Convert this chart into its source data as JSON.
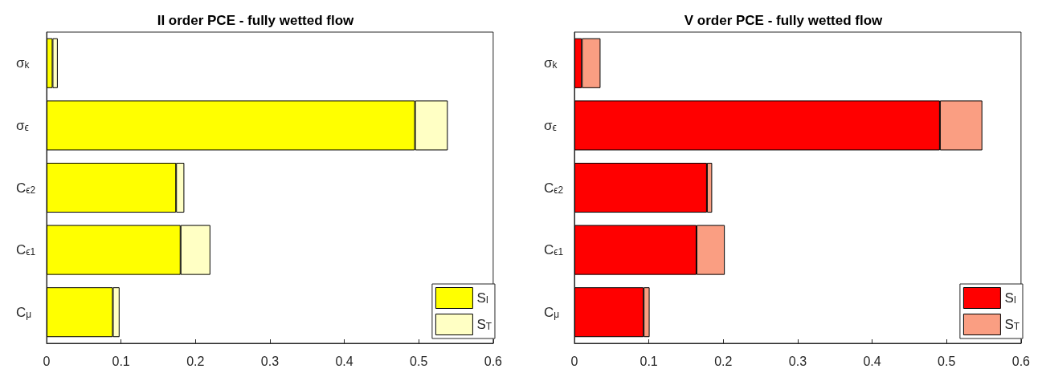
{
  "chart_data": [
    {
      "type": "bar",
      "orientation": "horizontal",
      "stacked": true,
      "title": "II order PCE - fully wetted flow",
      "categories": [
        "σ$_{k}$",
        "σ$_{ϵ}$",
        "C$_{ϵ2}$",
        "C$_{ϵ1}$",
        "C$_{μ}$"
      ],
      "series": [
        {
          "name": "S$_{I}$",
          "color": "#ffff00",
          "values": [
            0.008,
            0.495,
            0.174,
            0.18,
            0.089
          ]
        },
        {
          "name": "S$_{T}$",
          "color": "#ffffc4",
          "values": [
            0.007,
            0.044,
            0.011,
            0.04,
            0.009
          ]
        }
      ],
      "xlim": [
        0,
        0.6
      ],
      "xticks": [
        0,
        0.1,
        0.2,
        0.3,
        0.4,
        0.5,
        0.6
      ],
      "grid": false,
      "legend": "bottom right"
    },
    {
      "type": "bar",
      "orientation": "horizontal",
      "stacked": true,
      "title": "V order PCE - fully wetted flow",
      "categories": [
        "σ$_{k}$",
        "σ$_{ϵ}$",
        "C$_{ϵ2}$",
        "C$_{ϵ1}$",
        "C$_{μ}$"
      ],
      "series": [
        {
          "name": "S$_{I}$",
          "color": "#ff0000",
          "values": [
            0.01,
            0.491,
            0.178,
            0.164,
            0.093
          ]
        },
        {
          "name": "S$_{T}$",
          "color": "#fa9e82",
          "values": [
            0.025,
            0.057,
            0.007,
            0.038,
            0.008
          ]
        }
      ],
      "xlim": [
        0,
        0.6
      ],
      "xticks": [
        0,
        0.1,
        0.2,
        0.3,
        0.4,
        0.5,
        0.6
      ],
      "grid": false,
      "legend": "bottom right"
    }
  ]
}
